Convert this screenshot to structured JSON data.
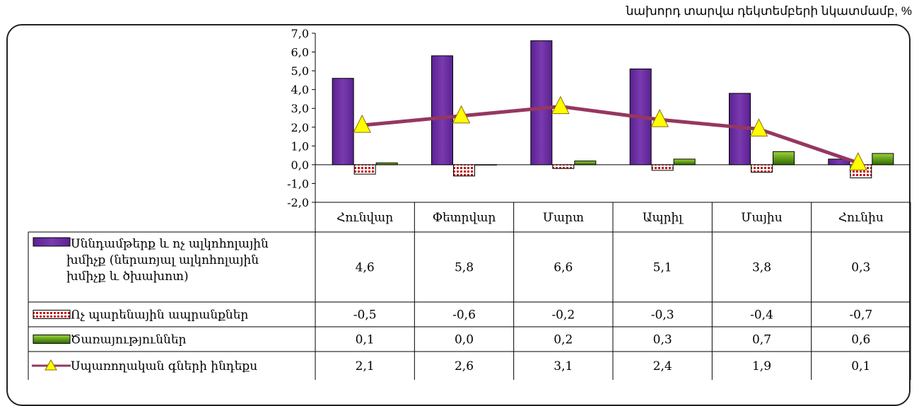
{
  "subtitle": "նախորդ տարվա դեկտեմբերի նկատմամբ, %",
  "chart_data": {
    "type": "bar",
    "categories": [
      "Հունվար",
      "Փետրվար",
      "Մարտ",
      "Ապրիլ",
      "Մայիս",
      "Հունիս"
    ],
    "ylim": [
      -2.0,
      7.0
    ],
    "yticks": [
      "7,0",
      "6,0",
      "5,0",
      "4,0",
      "3,0",
      "2,0",
      "1,0",
      "0,0",
      "-1,0",
      "-2,0"
    ],
    "ytick_values": [
      7,
      6,
      5,
      4,
      3,
      2,
      1,
      0,
      -1,
      -2
    ],
    "grid": false,
    "legend": "data-table-left",
    "series": [
      {
        "name_lines": [
          "Սննդամթերք և ոչ ալկոհոլային",
          "խմիչք (ներառյալ ալկոհոլային",
          "խմիչք և ծխախոտ)"
        ],
        "kind": "bar",
        "color": "#7030A0",
        "values": [
          4.6,
          5.8,
          6.6,
          5.1,
          3.8,
          0.3
        ],
        "labels": [
          "4,6",
          "5,8",
          "6,6",
          "5,1",
          "3,8",
          "0,3"
        ]
      },
      {
        "name_lines": [
          "Ոչ պարենային ապրանքներ"
        ],
        "kind": "bar",
        "color": "#C00000",
        "pattern": "dotted",
        "values": [
          -0.5,
          -0.6,
          -0.2,
          -0.3,
          -0.4,
          -0.7
        ],
        "labels": [
          "-0,5",
          "-0,6",
          "-0,2",
          "-0,3",
          "-0,4",
          "-0,7"
        ]
      },
      {
        "name_lines": [
          "Ծառայություններ"
        ],
        "kind": "bar",
        "color": "#4E8A00",
        "values": [
          0.1,
          0.0,
          0.2,
          0.3,
          0.7,
          0.6
        ],
        "labels": [
          "0,1",
          "0,0",
          "0,2",
          "0,3",
          "0,7",
          "0,6"
        ]
      },
      {
        "name_lines": [
          "Սպառողական գների ինդեքս"
        ],
        "kind": "line",
        "color": "#953761",
        "marker_color": "#FFFF00",
        "values": [
          2.1,
          2.6,
          3.1,
          2.4,
          1.9,
          0.1
        ],
        "labels": [
          "2,1",
          "2,6",
          "3,1",
          "2,4",
          "1,9",
          "0,1"
        ]
      }
    ]
  }
}
